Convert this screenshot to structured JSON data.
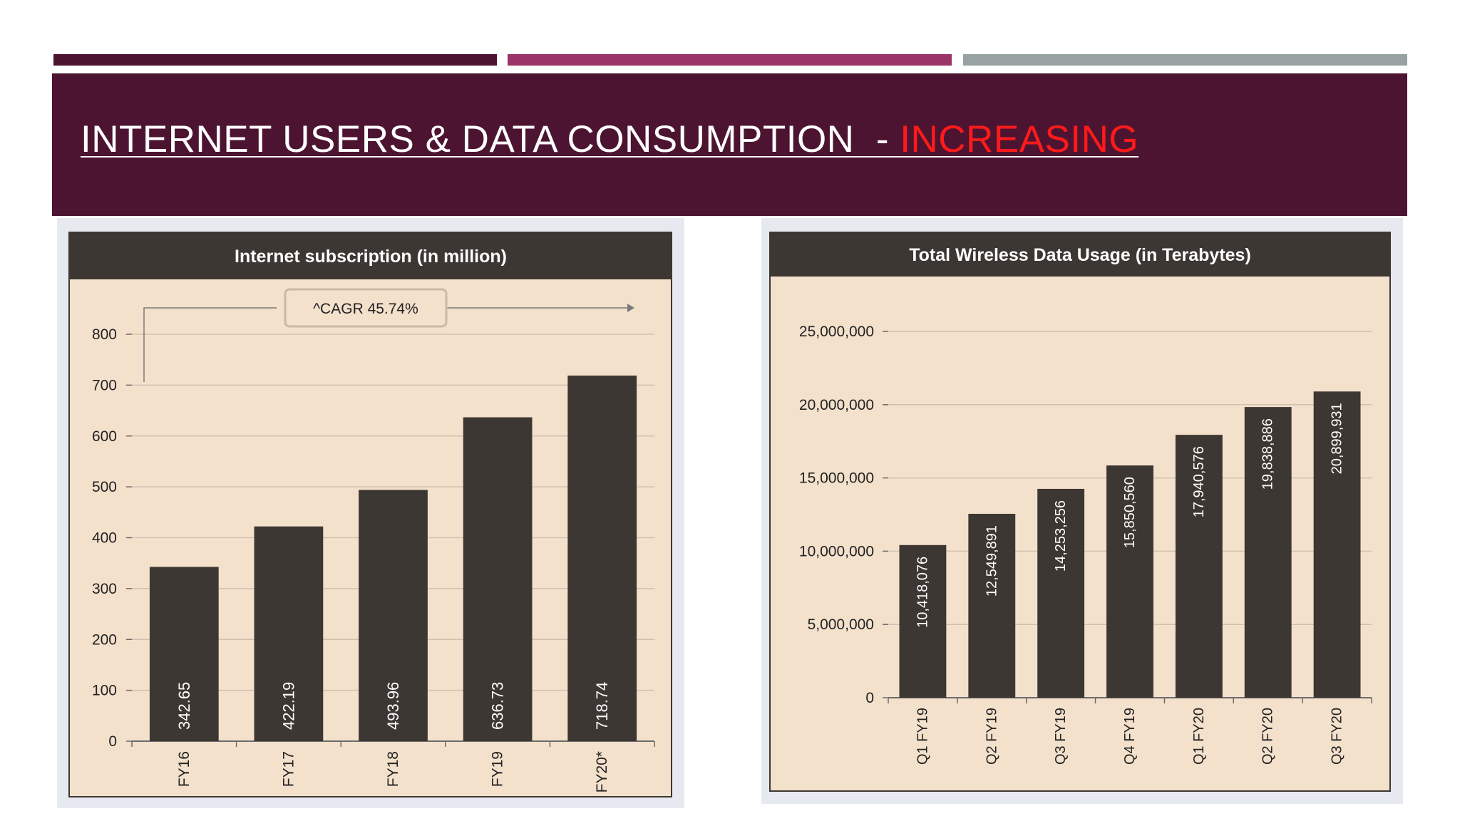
{
  "slide": {
    "title_main": "INTERNET USERS & DATA CONSUMPTION  - ",
    "title_highlight": "INCREASING",
    "colors": {
      "band": "#4d1431",
      "accent1": "#4d1431",
      "accent2": "#9b3468",
      "accent3": "#98a2a3",
      "highlight": "#ff1a1a",
      "bar": "#3d3733",
      "plot_bg": "#f3e1cc",
      "header": "#3d3733"
    }
  },
  "chart_data": [
    {
      "type": "bar",
      "title": "Internet subscription (in million)",
      "annotation": "^CAGR 45.74%",
      "categories": [
        "FY16",
        "FY17",
        "FY18",
        "FY19",
        "FY20*"
      ],
      "values": [
        342.65,
        422.19,
        493.96,
        636.73,
        718.74
      ],
      "value_labels": [
        "342.65",
        "422.19",
        "493.96",
        "636.73",
        "718.74"
      ],
      "yticks": [
        "0",
        "100",
        "200",
        "300",
        "400",
        "500",
        "600",
        "700",
        "800"
      ],
      "ylim": [
        0,
        800
      ],
      "grid": true
    },
    {
      "type": "bar",
      "title": "Total Wireless Data Usage (in Terabytes)",
      "categories": [
        "Q1 FY19",
        "Q2 FY19",
        "Q3 FY19",
        "Q4 FY19",
        "Q1 FY20",
        "Q2 FY20",
        "Q3 FY20"
      ],
      "values": [
        10418076,
        12549891,
        14253256,
        15850560,
        17940576,
        19838886,
        20899931
      ],
      "value_labels": [
        "10,418,076",
        "12,549,891",
        "14,253,256",
        "15,850,560",
        "17,940,576",
        "19,838,886",
        "20,899,931"
      ],
      "yticks": [
        "0",
        "5,000,000",
        "10,000,000",
        "15,000,000",
        "20,000,000",
        "25,000,000"
      ],
      "ylim": [
        0,
        25000000
      ],
      "grid": true
    }
  ]
}
